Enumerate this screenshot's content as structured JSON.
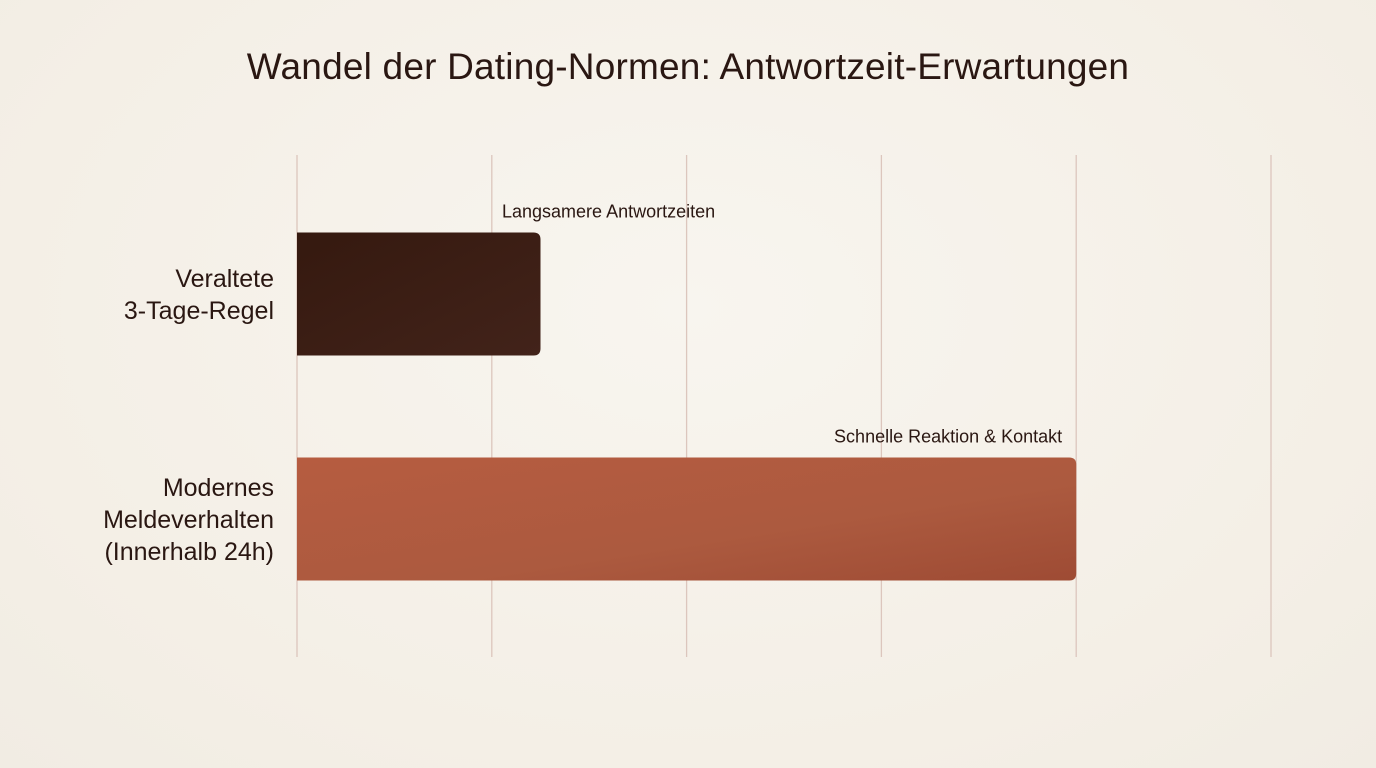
{
  "chart_data": {
    "type": "bar",
    "orientation": "horizontal",
    "title": "Wandel der Dating-Normen: Antwortzeit-Erwartungen",
    "xlabel": "",
    "ylabel": "",
    "xlim": [
      0,
      5
    ],
    "grid": true,
    "legend": "none",
    "categories": [
      "Veraltete\n3-Tage-Regel",
      "Modernes\nMeldeverhalten\n(Innerhalb 24h)"
    ],
    "values": [
      1.25,
      4
    ],
    "annotations": [
      "Langsamere Antwortzeiten",
      "Schnelle Reaktion & Kontakt"
    ],
    "colors": [
      "#3a1f15",
      "#b45c40"
    ]
  }
}
